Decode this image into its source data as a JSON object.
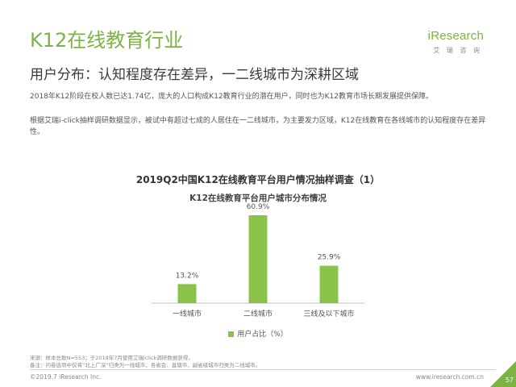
{
  "title": "K12在线教育行业",
  "logo": {
    "word": "iResearch",
    "sub": "艾 瑞 咨 询"
  },
  "subtitle": "用户分布：认知程度存在差异，一二线城市为深耕区域",
  "paragraph1": "2018年K12阶段在校人数已达1.74亿，庞大的人口构成K12教育行业的潜在用户，同时也为K12教育市场长期发展提供保障。",
  "paragraph2": "根据艾瑞i-click抽样调研数据显示，被试中有超过七成的人居住在一二线城市，为主要发力区域，K12在线教育在各线城市的认知程度存在差异性。",
  "chart_data": {
    "type": "bar",
    "title": "2019Q2中国K12在线教育平台用户情况抽样调查（1）",
    "subtitle": "K12在线教育平台用户城市分布情况",
    "categories": [
      "一线城市",
      "二线城市",
      "三线及以下城市"
    ],
    "values": [
      13.2,
      60.9,
      25.9
    ],
    "value_labels": [
      "13.2%",
      "60.9%",
      "25.9%"
    ],
    "series": [
      {
        "name": "用户占比（%）",
        "values": [
          13.2,
          60.9,
          25.9
        ]
      }
    ],
    "ylim": [
      0,
      70
    ],
    "legend": "bottom",
    "grid": false,
    "bar_color": "#8bc34a"
  },
  "source": "来源：样本总数N=553；于2019年7月使用艾瑞iclick调研数据获得。",
  "note": "备注：问卷选项中仅将“北上广深”归类为一线城市，各省会、直辖市、副省级城市归类为二线城市。",
  "copyright": "©2019.7 iResearch Inc.",
  "site": "www.iresearch.com.cn",
  "page": "57"
}
